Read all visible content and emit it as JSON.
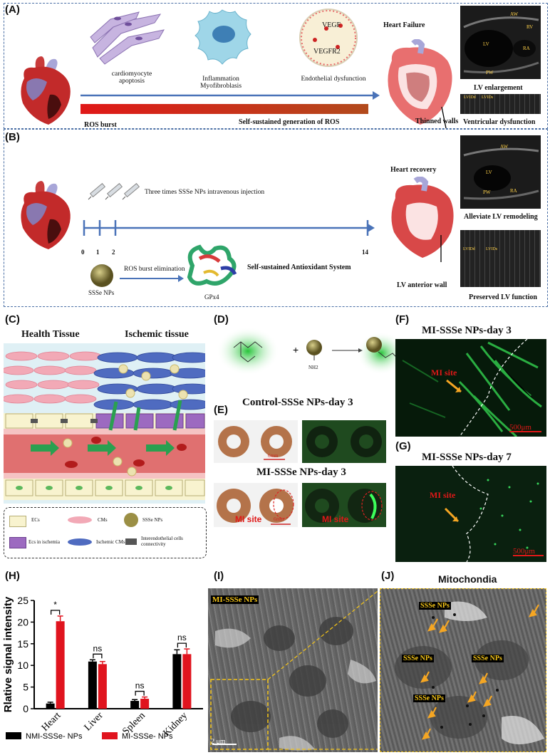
{
  "panelA": {
    "label": "(A)",
    "cardio_apoptosis": "cardiomyocyte\napoptosis",
    "inflammation": "Inflammation\nMyofibroblasis",
    "endothelial": "Endothelial dysfunction",
    "vegf": "VEGF",
    "vegfr2": "VEGFR2",
    "heart_failure": "Heart Failure",
    "ros_burst": "ROS burst",
    "self_sustained": "Self-sustained generation of ROS",
    "thinned_walls": "Thinned walls",
    "lv_enlargement": "LV enlargement",
    "ventricular_dysfunction": "Ventricular dysfunction",
    "echo_labels": {
      "aw": "AW",
      "rv": "RV",
      "lv": "LV",
      "ra": "RA",
      "pw": "PW",
      "lvidd": "LVIDd",
      "lvids": "LVIDs"
    }
  },
  "panelB": {
    "label": "(B)",
    "injection": "Three times SSSe NPs intravenous injection",
    "ticks": [
      "0",
      "1",
      "2",
      "14"
    ],
    "heart_recovery": "Heart recovery",
    "ros_elim": "ROS burst elimination",
    "ssse_nps": "SSSe NPs",
    "gpx4": "GPx4",
    "antioxidant": "Self-sustained Antioxidant System",
    "lv_anterior": "LV anterior wall",
    "alleviate": "Alleviate LV remodeling",
    "preserved": "Preserved LV function",
    "echo_labels": {
      "aw": "AW",
      "lv": "LV",
      "pw": "PW",
      "ra": "RA",
      "lvidd": "LVIDd",
      "lvids": "LVIDs"
    }
  },
  "panelC": {
    "label": "(C)",
    "health": "Health Tissue",
    "ischemic": "Ischemic tissue",
    "legend": {
      "ecs": "ECs",
      "cms": "CMs",
      "ssse": "SSSe NPs",
      "ecs_isch": "Ecs in ischemia",
      "isch_cms": "Ischemic CMs",
      "interendo": "Interendothelial cells connectivity"
    }
  },
  "panelD": {
    "label": "(D)",
    "nh2": "NH2"
  },
  "panelE": {
    "label": "(E)",
    "control_title": "Control-SSSe NPs-day 3",
    "mi_title": "MI-SSSe NPs-day 3",
    "scale_6mm": "6mm",
    "mi_site": "MI site"
  },
  "panelF": {
    "label": "(F)",
    "title": "MI-SSSe NPs-day 3",
    "mi_site": "MI site",
    "scale": "500μm"
  },
  "panelG": {
    "label": "(G)",
    "title": "MI-SSSe NPs-day 7",
    "mi_site": "MI site",
    "scale": "500μm"
  },
  "panelH": {
    "label": "(H)"
  },
  "panelI": {
    "label": "(I)",
    "tag": "MI-SSSe NPs",
    "scale": "2 μm"
  },
  "panelJ": {
    "label": "(J)",
    "title": "Mitochondia",
    "tags": [
      "SSSe NPs",
      "SSSe NPs",
      "SSSe NPs",
      "SSSe NPs"
    ]
  },
  "chart_data": {
    "type": "bar",
    "ylabel": "Rlative signal intensity",
    "ylim": [
      0,
      25
    ],
    "yticks": [
      0,
      5,
      10,
      15,
      20,
      25
    ],
    "categories": [
      "Heart",
      "Liver",
      "Spleen",
      "Kidney"
    ],
    "series": [
      {
        "name": "NMI-SSSe- NPs",
        "color": "#000000",
        "values": [
          1.2,
          10.9,
          1.8,
          12.6
        ],
        "errors": [
          0.3,
          0.4,
          0.3,
          1.0
        ]
      },
      {
        "name": "MI-SSSe- NPs",
        "color": "#e0141e",
        "values": [
          20.2,
          10.3,
          2.3,
          12.6
        ],
        "errors": [
          1.2,
          0.6,
          0.4,
          1.2
        ]
      }
    ],
    "significance": [
      "*",
      "ns",
      "ns",
      "ns"
    ]
  }
}
